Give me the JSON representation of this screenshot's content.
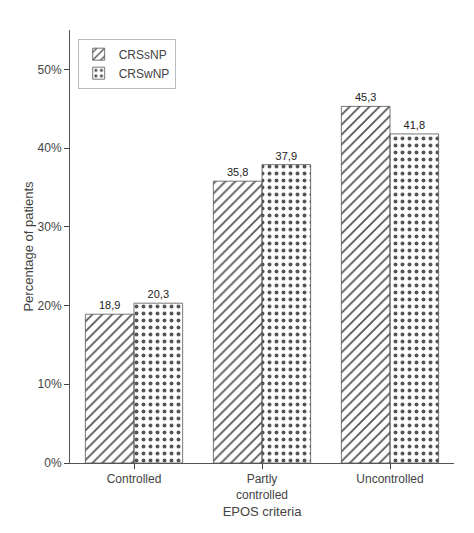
{
  "chart_data": {
    "type": "bar",
    "categories": [
      "Controlled",
      "Partly\ncontrolled",
      "Uncontrolled"
    ],
    "series": [
      {
        "name": "CRSsNP",
        "color": "#c8c8c8",
        "values": [
          18.9,
          35.8,
          45.3
        ],
        "value_labels": [
          "18,9",
          "35,8",
          "45,3"
        ]
      },
      {
        "name": "CRSwNP",
        "color": "#f0f0f0",
        "values": [
          20.3,
          37.9,
          41.8
        ],
        "value_labels": [
          "20,3",
          "37,9",
          "41,8"
        ]
      }
    ],
    "xlabel": "EPOS criteria",
    "ylabel": "Percentage of patients",
    "ylim": [
      0,
      55
    ],
    "yticks": [
      {
        "value": 0,
        "label": "0%"
      },
      {
        "value": 10,
        "label": "10%"
      },
      {
        "value": 20,
        "label": "20%"
      },
      {
        "value": 30,
        "label": "30%"
      },
      {
        "value": 40,
        "label": "40%"
      },
      {
        "value": 50,
        "label": "50%"
      }
    ],
    "grid": false,
    "legend": "upper left",
    "data_labels": true
  }
}
